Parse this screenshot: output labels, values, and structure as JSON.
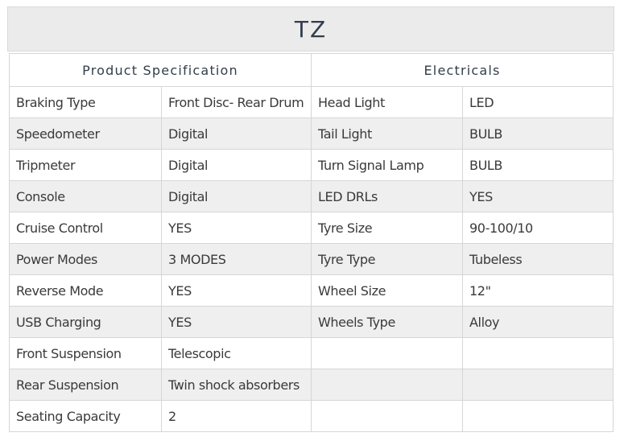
{
  "title": "TZ",
  "headers": {
    "left": "Product Specification",
    "right": "Electricals"
  },
  "rows": [
    [
      "Braking Type",
      "Front Disc- Rear Drum",
      "Head Light",
      "LED"
    ],
    [
      "Speedometer",
      "Digital",
      "Tail Light",
      "BULB"
    ],
    [
      "Tripmeter",
      "Digital",
      "Turn Signal Lamp",
      "BULB"
    ],
    [
      "Console",
      "Digital",
      "LED DRLs",
      "YES"
    ],
    [
      "Cruise Control",
      "YES",
      "Tyre Size",
      "90-100/10"
    ],
    [
      "Power Modes",
      "3 MODES",
      "Tyre Type",
      "Tubeless"
    ],
    [
      "Reverse Mode",
      "YES",
      "Wheel Size",
      "12\""
    ],
    [
      "USB Charging",
      "YES",
      "Wheels Type",
      "Alloy"
    ],
    [
      "Front Suspension",
      "Telescopic",
      "",
      ""
    ],
    [
      "Rear Suspension",
      "Twin shock absorbers",
      "",
      ""
    ],
    [
      "Seating Capacity",
      "2",
      "",
      ""
    ]
  ]
}
